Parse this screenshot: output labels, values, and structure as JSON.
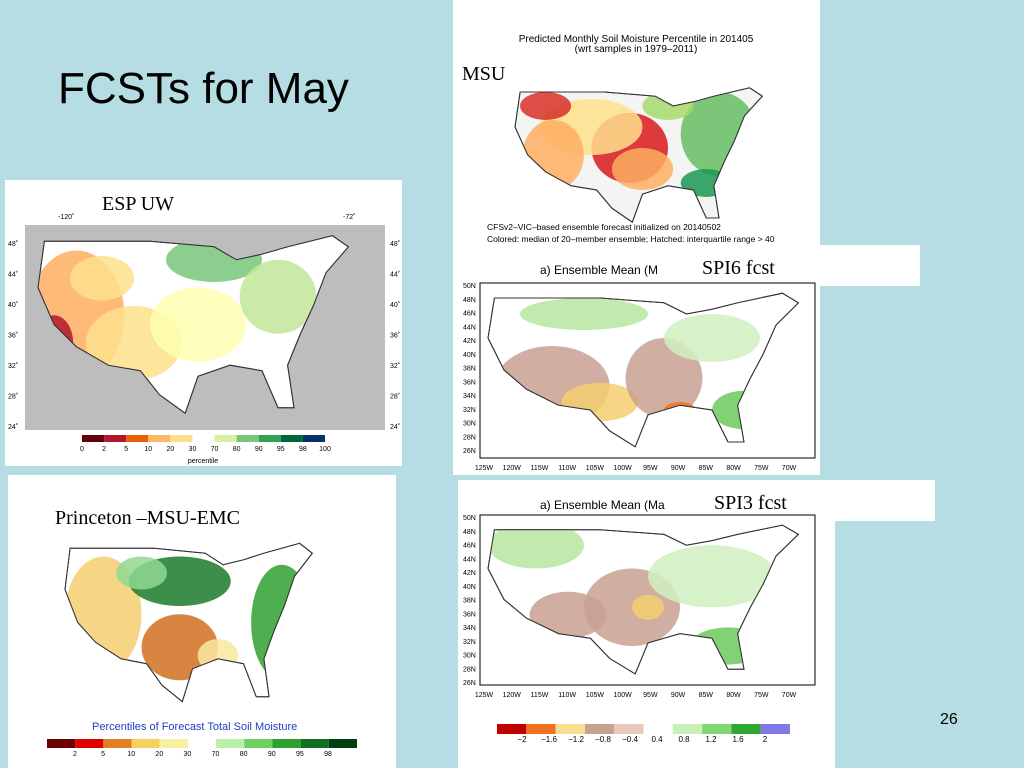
{
  "title": "FCSTs for May",
  "page_number": "26",
  "panels": [
    {
      "label": "MSU",
      "title_lines": [
        "Predicted Monthly Soil Moisture Percentile in 201405",
        "(wrt samples in 1979–2011)"
      ],
      "footer_lines": [
        "CFSv2–VIC–based ensemble forecast initialized on 20140502",
        "Colored: median of 20–member ensemble; Hatched: interquartile range > 40"
      ]
    },
    {
      "label": "ESP UW",
      "lon_labels": [
        "-120˚",
        "-72˚"
      ],
      "lat_labels": [
        "48˚",
        "44˚",
        "40˚",
        "36˚",
        "32˚",
        "28˚",
        "24˚"
      ],
      "legend_ticks": [
        "0",
        "2",
        "5",
        "10",
        "20",
        "30",
        "70",
        "80",
        "90",
        "95",
        "98",
        "100"
      ],
      "legend_title": "percentile"
    },
    {
      "label": "SPI6 fcst",
      "map_title": "a) Ensemble Mean (M",
      "lat_labels": [
        "50N",
        "48N",
        "46N",
        "44N",
        "42N",
        "40N",
        "38N",
        "36N",
        "34N",
        "32N",
        "30N",
        "28N",
        "26N"
      ],
      "lon_labels": [
        "125W",
        "120W",
        "115W",
        "110W",
        "105W",
        "100W",
        "95W",
        "90W",
        "85W",
        "80W",
        "75W",
        "70W"
      ]
    },
    {
      "label": "SPI3 fcst",
      "map_title": "a) Ensemble Mean (Ma",
      "lat_labels": [
        "50N",
        "48N",
        "46N",
        "44N",
        "42N",
        "40N",
        "38N",
        "36N",
        "34N",
        "32N",
        "30N",
        "28N",
        "26N"
      ],
      "lon_labels": [
        "125W",
        "120W",
        "115W",
        "110W",
        "105W",
        "100W",
        "95W",
        "90W",
        "85W",
        "80W",
        "75W",
        "70W"
      ],
      "legend_ticks": [
        "−2",
        "−1.6",
        "−1.2",
        "−0.8",
        "−0.4",
        "0.4",
        "0.8",
        "1.2",
        "1.6",
        "2"
      ]
    },
    {
      "label": "Princeton –MSU-EMC",
      "map_title": "Percentiles of Forecast Total Soil Moisture",
      "legend_ticks": [
        "2",
        "5",
        "10",
        "20",
        "30",
        "70",
        "80",
        "90",
        "95",
        "98"
      ]
    }
  ]
}
